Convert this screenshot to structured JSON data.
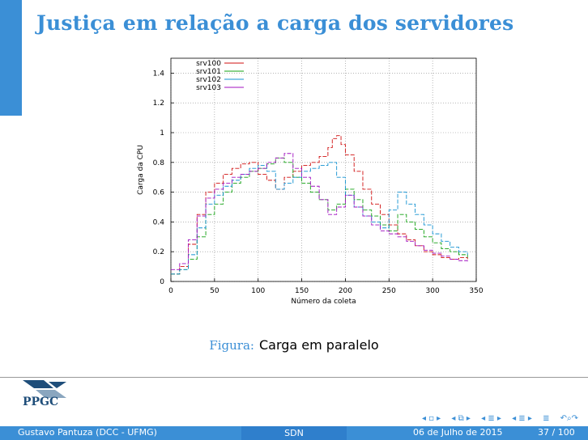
{
  "slide": {
    "title": "Justiça em relação a carga dos servidores",
    "caption_label": "Figura:",
    "caption_text": "Carga em paralelo"
  },
  "logo": {
    "text": "PPGC"
  },
  "footer": {
    "author": "Gustavo Pantuza (DCC - UFMG)",
    "short_title": "SDN",
    "date": "06 de Julho de 2015",
    "page": "37 / 100"
  },
  "nav_icons": [
    "nav-frame-icon",
    "nav-subsection-icon",
    "nav-section-icon",
    "nav-doc-icon",
    "nav-search-icon"
  ],
  "colors": {
    "accent": "#3b8fd6",
    "srv100": "#d01010",
    "srv101": "#10a010",
    "srv102": "#1090d0",
    "srv103": "#a010c0"
  },
  "chart_data": {
    "type": "line",
    "xlabel": "Número da coleta",
    "ylabel": "Carga da CPU",
    "xlim": [
      0,
      350
    ],
    "ylim": [
      0,
      1.5
    ],
    "xticks": [
      0,
      50,
      100,
      150,
      200,
      250,
      300,
      350
    ],
    "yticks": [
      0,
      0.2,
      0.4,
      0.6,
      0.8,
      1,
      1.2,
      1.4
    ],
    "grid": true,
    "legend": "top-left",
    "series": [
      {
        "name": "srv100",
        "x": [
          0,
          10,
          20,
          30,
          40,
          50,
          60,
          70,
          80,
          90,
          100,
          110,
          120,
          130,
          140,
          150,
          160,
          170,
          180,
          185,
          190,
          195,
          200,
          210,
          220,
          230,
          240,
          250,
          260,
          270,
          280,
          290,
          300,
          310,
          320,
          330,
          340
        ],
        "y": [
          0.05,
          0.1,
          0.25,
          0.45,
          0.6,
          0.66,
          0.72,
          0.76,
          0.79,
          0.8,
          0.72,
          0.68,
          0.62,
          0.7,
          0.74,
          0.78,
          0.8,
          0.84,
          0.9,
          0.96,
          0.98,
          0.92,
          0.85,
          0.74,
          0.62,
          0.52,
          0.45,
          0.38,
          0.32,
          0.28,
          0.24,
          0.2,
          0.18,
          0.16,
          0.15,
          0.16,
          0.15
        ]
      },
      {
        "name": "srv101",
        "x": [
          0,
          10,
          20,
          30,
          40,
          50,
          60,
          70,
          80,
          90,
          100,
          110,
          120,
          130,
          140,
          150,
          160,
          170,
          180,
          190,
          200,
          210,
          220,
          230,
          240,
          250,
          260,
          270,
          280,
          290,
          300,
          310,
          320,
          330,
          340
        ],
        "y": [
          0.05,
          0.08,
          0.15,
          0.3,
          0.45,
          0.52,
          0.6,
          0.66,
          0.7,
          0.74,
          0.76,
          0.79,
          0.83,
          0.8,
          0.7,
          0.66,
          0.6,
          0.55,
          0.48,
          0.52,
          0.62,
          0.55,
          0.48,
          0.44,
          0.38,
          0.34,
          0.45,
          0.4,
          0.35,
          0.3,
          0.26,
          0.22,
          0.2,
          0.18,
          0.16
        ]
      },
      {
        "name": "srv102",
        "x": [
          0,
          10,
          20,
          30,
          40,
          50,
          60,
          70,
          80,
          90,
          100,
          110,
          120,
          130,
          140,
          150,
          160,
          170,
          180,
          190,
          200,
          210,
          220,
          230,
          240,
          250,
          260,
          270,
          280,
          290,
          300,
          310,
          320,
          330,
          340
        ],
        "y": [
          0.05,
          0.08,
          0.18,
          0.36,
          0.52,
          0.58,
          0.64,
          0.68,
          0.72,
          0.76,
          0.78,
          0.74,
          0.62,
          0.66,
          0.7,
          0.74,
          0.76,
          0.78,
          0.8,
          0.7,
          0.58,
          0.5,
          0.44,
          0.4,
          0.36,
          0.48,
          0.6,
          0.52,
          0.45,
          0.38,
          0.32,
          0.27,
          0.23,
          0.2,
          0.18
        ]
      },
      {
        "name": "srv103",
        "x": [
          0,
          10,
          20,
          30,
          40,
          50,
          60,
          70,
          80,
          90,
          100,
          110,
          120,
          130,
          140,
          150,
          160,
          170,
          180,
          190,
          200,
          210,
          220,
          230,
          240,
          250,
          260,
          270,
          280,
          290,
          300,
          310,
          320,
          330,
          340
        ],
        "y": [
          0.08,
          0.12,
          0.28,
          0.44,
          0.56,
          0.62,
          0.66,
          0.7,
          0.72,
          0.74,
          0.76,
          0.8,
          0.83,
          0.86,
          0.76,
          0.7,
          0.64,
          0.55,
          0.45,
          0.5,
          0.58,
          0.5,
          0.44,
          0.38,
          0.34,
          0.32,
          0.3,
          0.27,
          0.24,
          0.21,
          0.19,
          0.17,
          0.15,
          0.14,
          0.13
        ]
      }
    ]
  }
}
